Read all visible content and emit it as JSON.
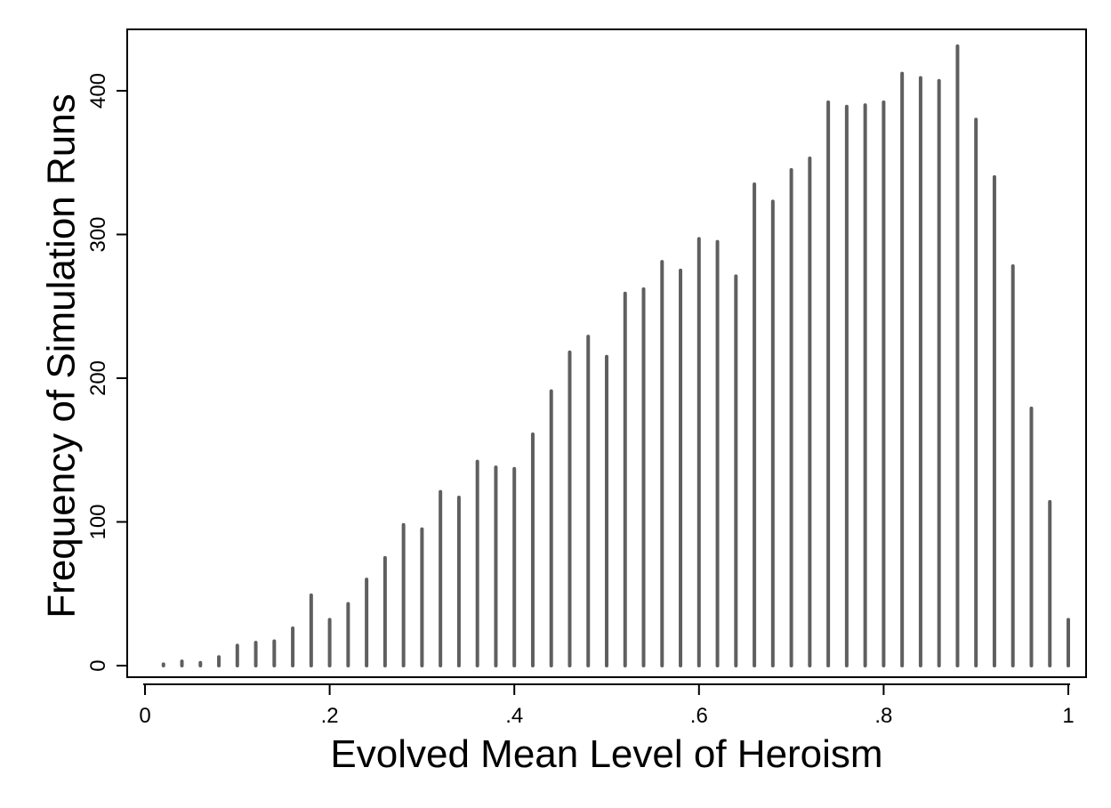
{
  "chart_data": {
    "type": "bar",
    "title": "",
    "xlabel": "Evolved Mean Level of Heroism",
    "ylabel": "Frequency of Simulation Runs",
    "xlim": [
      0,
      1
    ],
    "ylim": [
      0,
      430
    ],
    "x_ticks": [
      {
        "value": 0,
        "label": "0"
      },
      {
        "value": 0.2,
        "label": ".2"
      },
      {
        "value": 0.4,
        "label": ".4"
      },
      {
        "value": 0.6,
        "label": ".6"
      },
      {
        "value": 0.8,
        "label": ".8"
      },
      {
        "value": 1.0,
        "label": "1"
      }
    ],
    "y_ticks": [
      {
        "value": 0,
        "label": "0"
      },
      {
        "value": 100,
        "label": "100"
      },
      {
        "value": 200,
        "label": "200"
      },
      {
        "value": 300,
        "label": "300"
      },
      {
        "value": 400,
        "label": "400"
      }
    ],
    "grid": false,
    "bar_color": "#5f5f5f",
    "x": [
      0.02,
      0.04,
      0.06,
      0.08,
      0.1,
      0.12,
      0.14,
      0.16,
      0.18,
      0.2,
      0.22,
      0.24,
      0.26,
      0.28,
      0.3,
      0.32,
      0.34,
      0.36,
      0.38,
      0.4,
      0.42,
      0.44,
      0.46,
      0.48,
      0.5,
      0.52,
      0.54,
      0.56,
      0.58,
      0.6,
      0.62,
      0.64,
      0.66,
      0.68,
      0.7,
      0.72,
      0.74,
      0.76,
      0.78,
      0.8,
      0.82,
      0.84,
      0.86,
      0.88,
      0.9,
      0.92,
      0.94,
      0.96,
      0.98,
      1.0
    ],
    "values": [
      1,
      3,
      2,
      6,
      14,
      16,
      17,
      26,
      49,
      32,
      43,
      60,
      75,
      98,
      95,
      121,
      117,
      142,
      138,
      137,
      161,
      191,
      218,
      229,
      215,
      259,
      262,
      281,
      275,
      297,
      295,
      271,
      335,
      323,
      345,
      353,
      392,
      389,
      390,
      392,
      412,
      409,
      407,
      431,
      380,
      340,
      278,
      179,
      114,
      32
    ]
  }
}
